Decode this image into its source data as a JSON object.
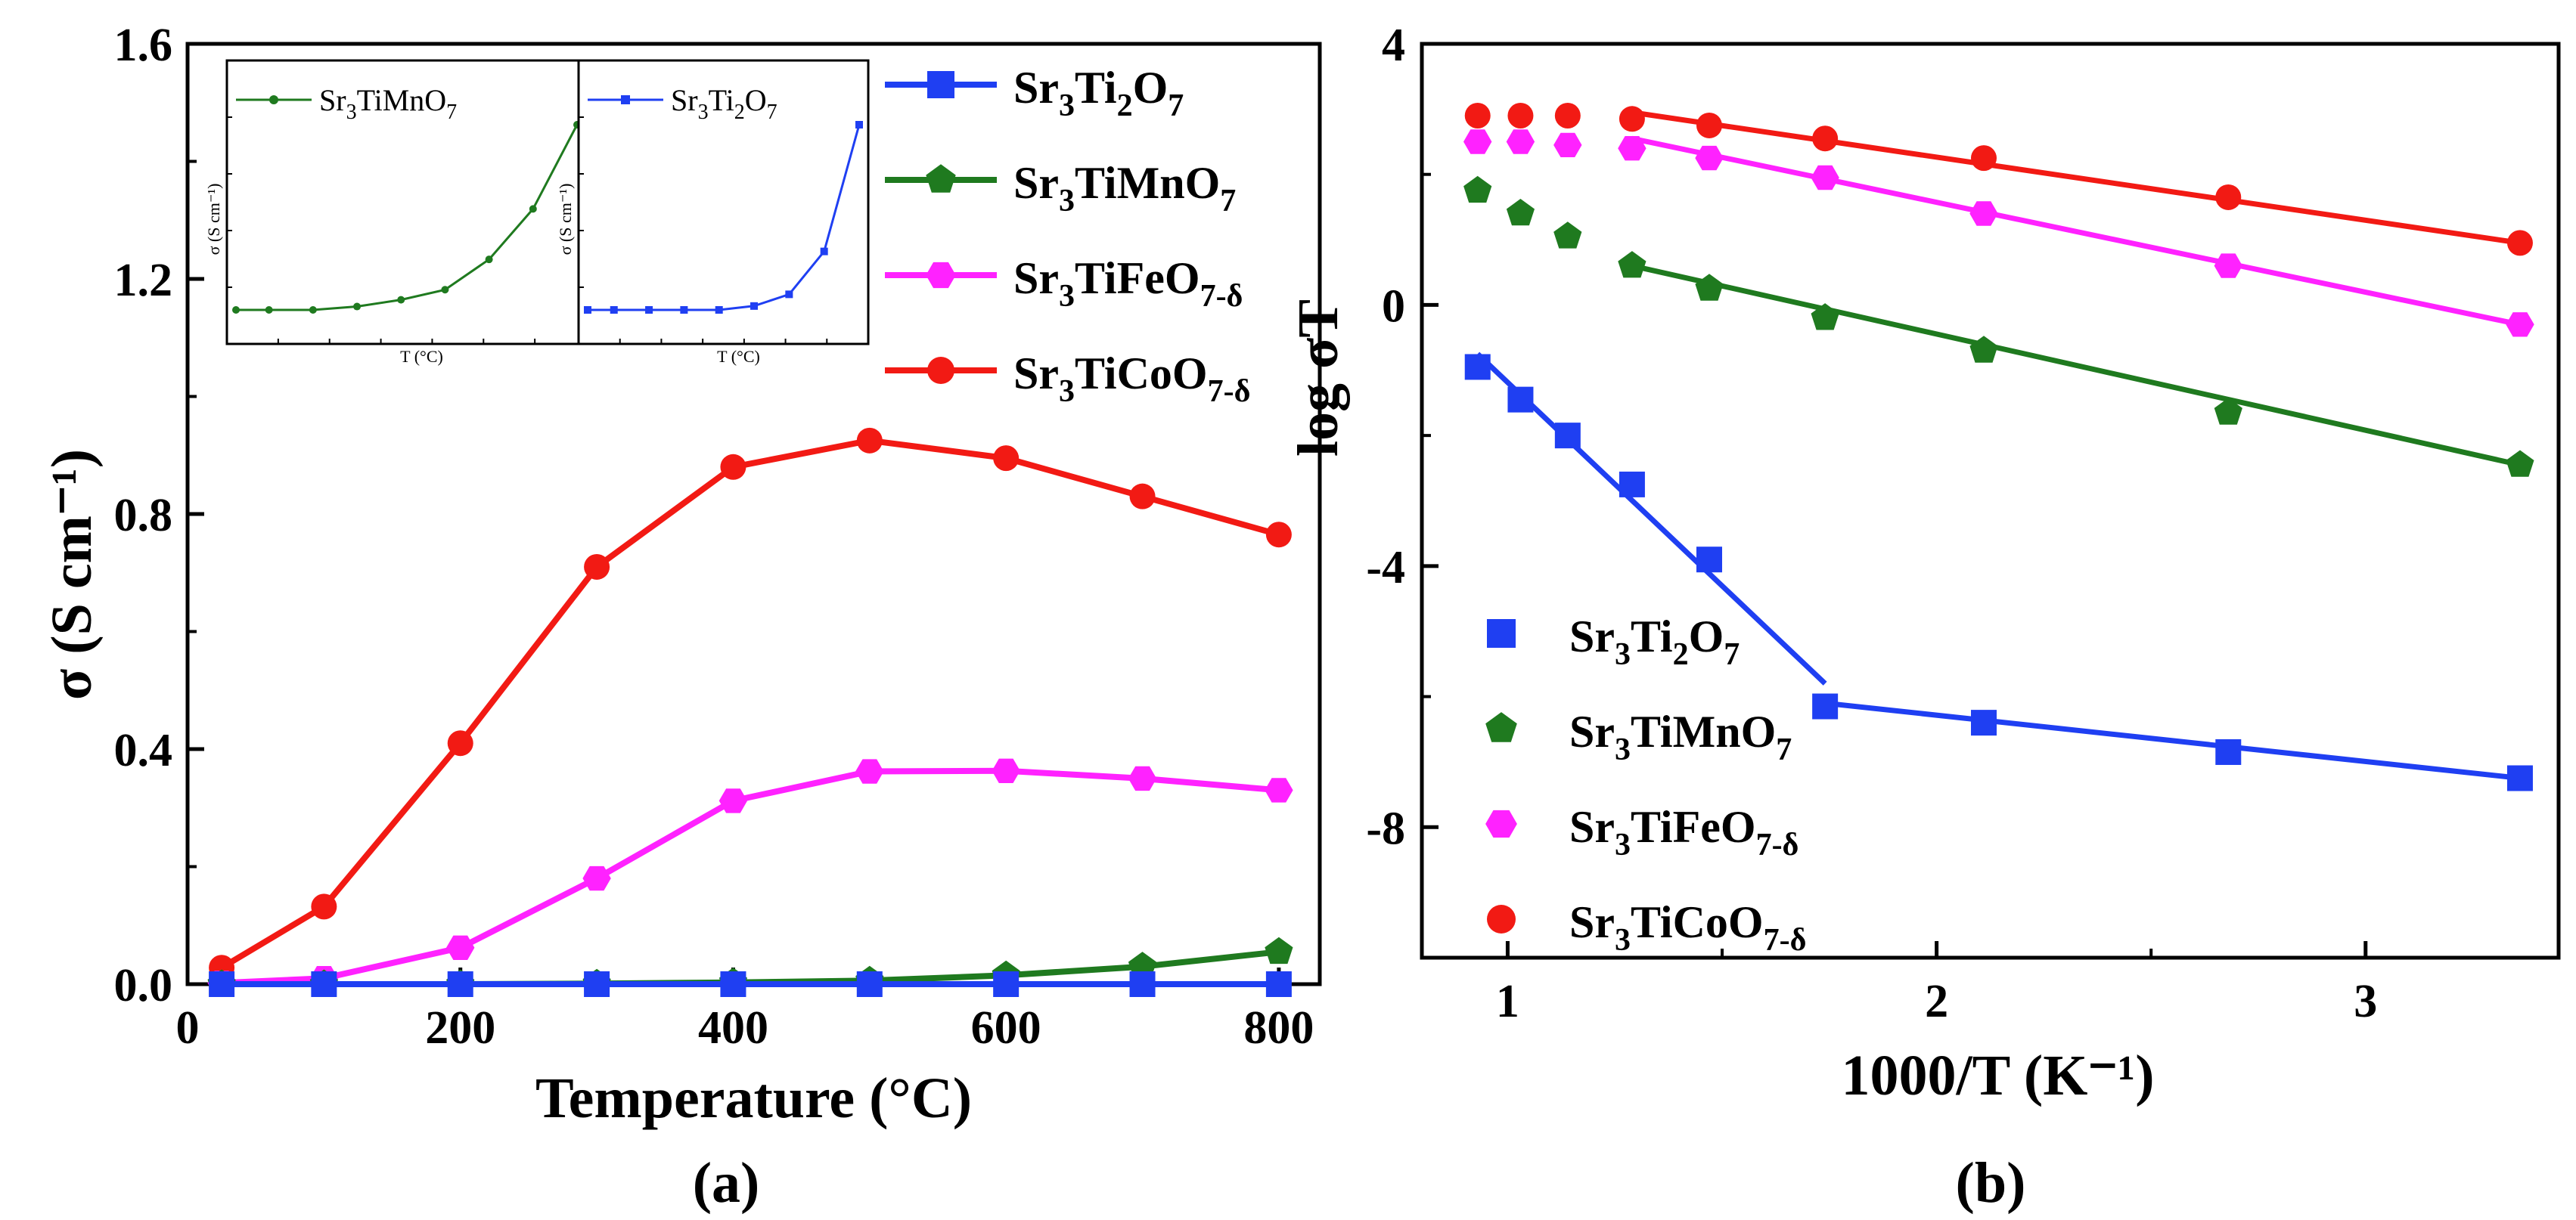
{
  "colors": {
    "blue": "#1f3ff2",
    "green": "#1f7a1f",
    "magenta": "#ff22ff",
    "red": "#f21a14",
    "axis": "#000000"
  },
  "chart_data": [
    {
      "panel": "(a)",
      "type": "line",
      "xlabel": "Temperature (°C)",
      "ylabel": "σ (S cm⁻¹)",
      "xlim": [
        0,
        830
      ],
      "ylim": [
        0,
        1.6
      ],
      "xticks": [
        0,
        200,
        400,
        600,
        800
      ],
      "yticks": [
        0.0,
        0.4,
        0.8,
        1.2,
        1.6
      ],
      "x": [
        25,
        100,
        200,
        300,
        400,
        500,
        600,
        700,
        800
      ],
      "legend": "top-right",
      "series": [
        {
          "name": "Sr3Ti2O7",
          "label_base": "Sr",
          "label_sub1": "3",
          "label_mid": "Ti",
          "label_sub2": "2",
          "label_end": "O",
          "label_sub3": "7",
          "marker": "square",
          "color": "blue",
          "values": [
            0.0,
            0.0,
            0.0,
            0.0,
            0.0,
            0.0,
            0.0,
            0.0,
            0.0
          ]
        },
        {
          "name": "Sr3TiMnO7",
          "label_base": "Sr",
          "label_sub1": "3",
          "label_mid": "TiMnO",
          "label_sub2": "7",
          "marker": "pentagon",
          "color": "green",
          "values": [
            0.0,
            0.0,
            0.0,
            0.001,
            0.003,
            0.006,
            0.015,
            0.03,
            0.055
          ]
        },
        {
          "name": "Sr3TiFeO7-δ",
          "label_base": "Sr",
          "label_sub1": "3",
          "label_mid": "TiFeO",
          "label_sub2": "7-δ",
          "marker": "hexagon",
          "color": "magenta",
          "values": [
            0.002,
            0.01,
            0.062,
            0.18,
            0.312,
            0.362,
            0.363,
            0.35,
            0.33
          ]
        },
        {
          "name": "Sr3TiCoO7-δ",
          "label_base": "Sr",
          "label_sub1": "3",
          "label_mid": "TiCoO",
          "label_sub2": "7-δ",
          "marker": "circle",
          "color": "red",
          "values": [
            0.028,
            0.132,
            0.41,
            0.71,
            0.88,
            0.925,
            0.895,
            0.83,
            0.765
          ]
        }
      ],
      "insets": [
        {
          "label": "Sr3TiMnO7",
          "label_base": "Sr",
          "label_sub1": "3",
          "label_mid": "TiMnO",
          "label_sub2": "7",
          "color": "green",
          "ylabel": "σ (S cm⁻¹)",
          "xlabel": "T (°C)",
          "x": [
            25,
            100,
            200,
            300,
            400,
            500,
            600,
            700,
            800
          ],
          "values": [
            0.0,
            0.0,
            0.0,
            0.001,
            0.003,
            0.006,
            0.015,
            0.03,
            0.055
          ]
        },
        {
          "label": "Sr3Ti2O7",
          "label_base": "Sr",
          "label_sub1": "3",
          "label_mid": "Ti",
          "label_sub2": "2",
          "label_end": "O",
          "label_sub3": "7",
          "color": "blue",
          "ylabel": "σ (S cm⁻¹)",
          "xlabel": "T (°C)",
          "x": [
            25,
            100,
            200,
            300,
            400,
            500,
            600,
            700,
            800
          ],
          "values": [
            0.0,
            0.0,
            0.0,
            0.0,
            0.0,
            0.02,
            0.08,
            0.3,
            0.95
          ]
        }
      ]
    },
    {
      "panel": "(b)",
      "type": "scatter",
      "xlabel": "1000/T (K⁻¹)",
      "ylabel": "log σT",
      "xlim": [
        0.8,
        3.45
      ],
      "ylim": [
        -10,
        4
      ],
      "xticks": [
        1,
        2,
        3
      ],
      "yticks": [
        -8,
        -4,
        0,
        4
      ],
      "legend": "bottom-left",
      "series": [
        {
          "name": "Sr3Ti2O7",
          "label_base": "Sr",
          "label_sub1": "3",
          "label_mid": "Ti",
          "label_sub2": "2",
          "label_end": "O",
          "label_sub3": "7",
          "marker": "square",
          "color": "blue",
          "x": [
            0.93,
            1.03,
            1.14,
            1.29,
            1.47,
            1.74,
            2.11,
            2.68,
            3.36
          ],
          "values": [
            -0.95,
            -1.45,
            -2.0,
            -2.75,
            -3.9,
            -6.15,
            -6.4,
            -6.85,
            -7.25
          ],
          "fits": [
            {
              "x": [
                0.93,
                1.74
              ],
              "y": [
                -0.75,
                -5.8
              ]
            },
            {
              "x": [
                1.74,
                3.36
              ],
              "y": [
                -6.1,
                -7.25
              ]
            }
          ]
        },
        {
          "name": "Sr3TiMnO7",
          "label_base": "Sr",
          "label_sub1": "3",
          "label_mid": "TiMnO",
          "label_sub2": "7",
          "marker": "pentagon",
          "color": "green",
          "x": [
            0.93,
            1.03,
            1.14,
            1.29,
            1.47,
            1.74,
            2.11,
            2.68,
            3.36
          ],
          "values": [
            1.75,
            1.4,
            1.05,
            0.6,
            0.25,
            -0.2,
            -0.7,
            -1.65,
            -2.45
          ],
          "fits": [
            {
              "x": [
                1.29,
                3.36
              ],
              "y": [
                0.6,
                -2.45
              ]
            }
          ]
        },
        {
          "name": "Sr3TiFeO7-δ",
          "label_base": "Sr",
          "label_sub1": "3",
          "label_mid": "TiFeO",
          "label_sub2": "7-δ",
          "marker": "hexagon",
          "color": "magenta",
          "x": [
            0.93,
            1.03,
            1.14,
            1.29,
            1.47,
            1.74,
            2.11,
            2.68,
            3.36
          ],
          "values": [
            2.5,
            2.5,
            2.45,
            2.4,
            2.25,
            1.95,
            1.4,
            0.6,
            -0.3
          ],
          "fits": [
            {
              "x": [
                1.29,
                3.36
              ],
              "y": [
                2.55,
                -0.3
              ]
            }
          ]
        },
        {
          "name": "Sr3TiCoO7-δ",
          "label_base": "Sr",
          "label_sub1": "3",
          "label_mid": "TiCoO",
          "label_sub2": "7-δ",
          "marker": "circle",
          "color": "red",
          "x": [
            0.93,
            1.03,
            1.14,
            1.29,
            1.47,
            1.74,
            2.11,
            2.68,
            3.36
          ],
          "values": [
            2.9,
            2.9,
            2.9,
            2.85,
            2.75,
            2.55,
            2.25,
            1.65,
            0.95
          ],
          "fits": [
            {
              "x": [
                1.29,
                3.36
              ],
              "y": [
                2.95,
                0.95
              ]
            }
          ]
        }
      ]
    }
  ]
}
